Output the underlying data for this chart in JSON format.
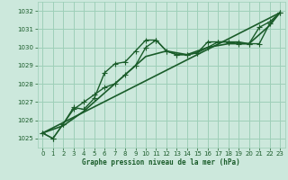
{
  "title": "Graphe pression niveau de la mer (hPa)",
  "bg_color": "#cce8dc",
  "grid_color": "#9ecfb8",
  "line_color": "#1a5c2a",
  "text_color": "#1a5c2a",
  "xlim": [
    -0.5,
    23.5
  ],
  "ylim": [
    1024.5,
    1032.5
  ],
  "xticks": [
    0,
    1,
    2,
    3,
    4,
    5,
    6,
    7,
    8,
    9,
    10,
    11,
    12,
    13,
    14,
    15,
    16,
    17,
    18,
    19,
    20,
    21,
    22,
    23
  ],
  "yticks": [
    1025,
    1026,
    1027,
    1028,
    1029,
    1030,
    1031,
    1032
  ],
  "series": [
    {
      "x": [
        0,
        1,
        2,
        3,
        4,
        5,
        6,
        7,
        8,
        9,
        10,
        11,
        12,
        13,
        14,
        15,
        16,
        17,
        18,
        19,
        20,
        21,
        22,
        23
      ],
      "y": [
        1025.3,
        1025.0,
        1025.8,
        1026.7,
        1026.6,
        1027.2,
        1028.6,
        1029.1,
        1029.2,
        1029.8,
        1030.4,
        1030.4,
        1029.8,
        1029.6,
        1029.6,
        1029.7,
        1030.3,
        1030.3,
        1030.3,
        1030.3,
        1030.2,
        1031.1,
        1031.4,
        1031.9
      ],
      "marker": "+",
      "markersize": 4,
      "linewidth": 1.0,
      "linestyle": "-"
    },
    {
      "x": [
        0,
        1,
        2,
        3,
        4,
        5,
        6,
        7,
        8,
        9,
        10,
        11,
        12,
        13,
        14,
        15,
        16,
        17,
        18,
        19,
        20,
        21,
        22,
        23
      ],
      "y": [
        1025.3,
        1025.0,
        1025.8,
        1026.6,
        1027.0,
        1027.4,
        1027.8,
        1028.0,
        1028.5,
        1029.0,
        1030.0,
        1030.4,
        1029.8,
        1029.6,
        1029.6,
        1029.7,
        1030.0,
        1030.3,
        1030.3,
        1030.2,
        1030.2,
        1030.2,
        1031.3,
        1031.9
      ],
      "marker": "+",
      "markersize": 4,
      "linewidth": 1.0,
      "linestyle": "-"
    },
    {
      "x": [
        0,
        2,
        4,
        6,
        8,
        10,
        12,
        14,
        16,
        18,
        20,
        22,
        23
      ],
      "y": [
        1025.3,
        1025.7,
        1026.5,
        1027.5,
        1028.5,
        1029.5,
        1029.8,
        1029.6,
        1030.0,
        1030.2,
        1030.2,
        1031.2,
        1031.9
      ],
      "marker": null,
      "markersize": 0,
      "linewidth": 1.2,
      "linestyle": "-"
    },
    {
      "x": [
        0,
        23
      ],
      "y": [
        1025.3,
        1031.9
      ],
      "marker": null,
      "markersize": 0,
      "linewidth": 1.2,
      "linestyle": "-"
    }
  ]
}
